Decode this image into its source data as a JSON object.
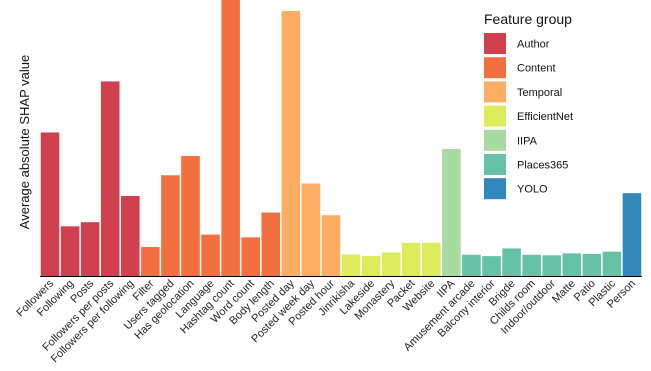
{
  "chart_data": {
    "type": "bar",
    "ylabel": "Average absolute SHAP value",
    "legend_title": "Feature group",
    "legend_position": "top-right",
    "grid": false,
    "y_ticks_shown": false,
    "groups": [
      {
        "name": "Author",
        "color": "#d1404e"
      },
      {
        "name": "Content",
        "color": "#f26f40"
      },
      {
        "name": "Temporal",
        "color": "#fdad61"
      },
      {
        "name": "EfficientNet",
        "color": "#dcec5a"
      },
      {
        "name": "IIPA",
        "color": "#a8dba2"
      },
      {
        "name": "Places365",
        "color": "#66c2a5"
      },
      {
        "name": "YOLO",
        "color": "#3288bd"
      }
    ],
    "categories": [
      "Followers",
      "Following",
      "Posts",
      "Followers per posts",
      "Followers per following",
      "Filter",
      "Users tagged",
      "Has geolocation",
      "Language",
      "Hashtag count",
      "Word count",
      "Body length",
      "Posted day",
      "Posted week day",
      "Posted hour",
      "Jinrikisha",
      "Lakeside",
      "Monastery",
      "Packet",
      "Website",
      "IIPA",
      "Amusement arcade",
      "Balcony interior",
      "Brigde",
      "Childs room",
      "Indoor/outdoor",
      "Matte",
      "Patio",
      "Plastic",
      "Person"
    ],
    "category_groups": [
      "Author",
      "Author",
      "Author",
      "Author",
      "Author",
      "Content",
      "Content",
      "Content",
      "Content",
      "Content",
      "Content",
      "Content",
      "Temporal",
      "Temporal",
      "Temporal",
      "EfficientNet",
      "EfficientNet",
      "EfficientNet",
      "EfficientNet",
      "EfficientNet",
      "IIPA",
      "Places365",
      "Places365",
      "Places365",
      "Places365",
      "Places365",
      "Places365",
      "Places365",
      "Places365",
      "YOLO"
    ],
    "values": [
      0.52,
      0.18,
      0.195,
      0.705,
      0.29,
      0.105,
      0.365,
      0.435,
      0.15,
      1.0,
      0.14,
      0.23,
      0.96,
      0.335,
      0.22,
      0.078,
      0.072,
      0.085,
      0.12,
      0.12,
      0.46,
      0.077,
      0.072,
      0.1,
      0.077,
      0.075,
      0.082,
      0.08,
      0.088,
      0.3
    ],
    "ylim": [
      0,
      1.0
    ]
  }
}
